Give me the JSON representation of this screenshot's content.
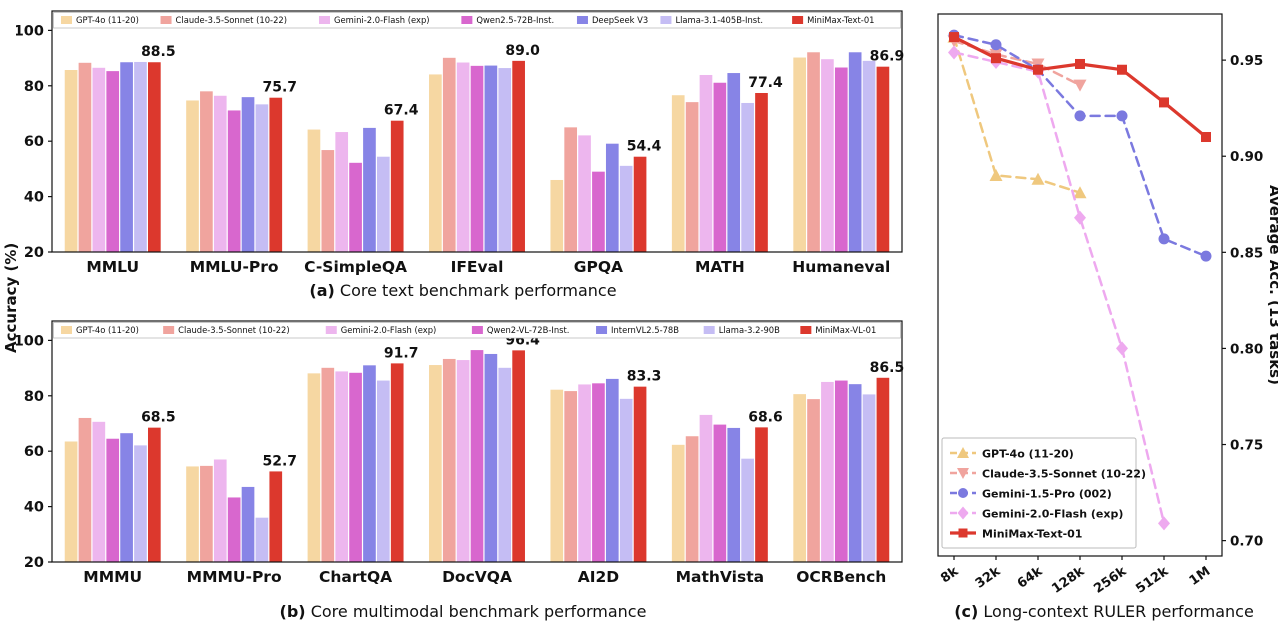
{
  "figure": {
    "caption_a_prefix": "(a)",
    "caption_a_text": "Core text benchmark performance",
    "caption_b_prefix": "(b)",
    "caption_b_text": "Core multimodal benchmark performance",
    "caption_c_prefix": "(c)",
    "caption_c_text": "Long-context RULER performance",
    "ylabel_left": "Accuracy (%)"
  },
  "chart_data": [
    {
      "id": "core-text-benchmarks",
      "type": "bar",
      "title": "(a) Core text benchmark performance",
      "ylabel": "Accuracy (%)",
      "ylim": [
        20,
        100
      ],
      "yticks": [
        20,
        40,
        60,
        80,
        100
      ],
      "grid": false,
      "legend_position": "top-inside-row",
      "categories": [
        "MMLU",
        "MMLU-Pro",
        "C-SimpleQA",
        "IFEval",
        "GPQA",
        "MATH",
        "Humaneval"
      ],
      "series": [
        {
          "name": "GPT-4o (11-20)",
          "color": "#F6D7A2",
          "values": [
            85.7,
            74.7,
            64.2,
            84.1,
            46.0,
            76.6,
            90.2
          ]
        },
        {
          "name": "Claude-3.5-Sonnet (10-22)",
          "color": "#F0A49E",
          "values": [
            88.3,
            78.0,
            56.8,
            90.1,
            65.0,
            74.1,
            92.1
          ]
        },
        {
          "name": "Gemini-2.0-Flash (exp)",
          "color": "#EDB6EE",
          "values": [
            86.5,
            76.4,
            63.3,
            88.4,
            62.1,
            83.9,
            89.6
          ]
        },
        {
          "name": "Qwen2.5-72B-Inst.",
          "color": "#D867CE",
          "values": [
            85.3,
            71.1,
            52.2,
            87.2,
            49.0,
            81.1,
            86.6
          ]
        },
        {
          "name": "DeepSeek V3",
          "color": "#8784E6",
          "values": [
            88.5,
            75.9,
            64.8,
            87.3,
            59.1,
            84.6,
            92.1
          ]
        },
        {
          "name": "Llama-3.1-405B-Inst.",
          "color": "#C5BDF4",
          "values": [
            88.6,
            73.3,
            54.4,
            86.4,
            51.1,
            73.8,
            89.0
          ]
        },
        {
          "name": "MiniMax-Text-01",
          "color": "#DC382D",
          "values": [
            88.5,
            75.7,
            67.4,
            89.0,
            54.4,
            77.4,
            86.9
          ]
        }
      ],
      "annotations": [
        "88.5",
        "75.7",
        "67.4",
        "89.0",
        "54.4",
        "77.4",
        "86.9"
      ]
    },
    {
      "id": "core-multimodal-benchmarks",
      "type": "bar",
      "title": "(b) Core multimodal benchmark performance",
      "ylabel": "Accuracy (%)",
      "ylim": [
        20,
        100
      ],
      "yticks": [
        20,
        40,
        60,
        80,
        100
      ],
      "grid": false,
      "legend_position": "top-inside-row",
      "categories": [
        "MMMU",
        "MMMU-Pro",
        "ChartQA",
        "DocVQA",
        "AI2D",
        "MathVista",
        "OCRBench"
      ],
      "series": [
        {
          "name": "GPT-4o (11-20)",
          "color": "#F6D7A2",
          "values": [
            63.5,
            54.5,
            88.1,
            91.1,
            82.2,
            62.3,
            80.6
          ]
        },
        {
          "name": "Claude-3.5-Sonnet (10-22)",
          "color": "#F0A49E",
          "values": [
            72.0,
            54.7,
            90.1,
            93.3,
            81.7,
            65.4,
            78.8
          ]
        },
        {
          "name": "Gemini-2.0-Flash (exp)",
          "color": "#EDB6EE",
          "values": [
            70.6,
            57.0,
            88.8,
            92.9,
            84.1,
            73.1,
            85.0
          ]
        },
        {
          "name": "Qwen2-VL-72B-Inst.",
          "color": "#D867CE",
          "values": [
            64.5,
            43.3,
            88.3,
            96.5,
            84.5,
            69.6,
            85.5
          ]
        },
        {
          "name": "InternVL2.5-78B",
          "color": "#8784E6",
          "values": [
            66.5,
            47.1,
            91.0,
            95.1,
            86.1,
            68.4,
            84.2
          ]
        },
        {
          "name": "Llama-3.2-90B",
          "color": "#C5BDF4",
          "values": [
            62.1,
            36.0,
            85.5,
            90.1,
            78.9,
            57.3,
            80.5
          ]
        },
        {
          "name": "MiniMax-VL-01",
          "color": "#DC382D",
          "values": [
            68.5,
            52.7,
            91.7,
            96.4,
            83.3,
            68.6,
            86.5
          ]
        }
      ],
      "annotations": [
        "68.5",
        "52.7",
        "91.7",
        "96.4",
        "83.3",
        "68.6",
        "86.5"
      ]
    },
    {
      "id": "long-context-ruler",
      "type": "line",
      "title": "(c) Long-context RULER performance",
      "ylabel_right": "Average Acc. (13 tasks)",
      "x_categories": [
        "8k",
        "32k",
        "64k",
        "128k",
        "256k",
        "512k",
        "1M"
      ],
      "ylim": [
        0.7,
        0.97
      ],
      "yticks": [
        0.7,
        0.75,
        0.8,
        0.85,
        0.9,
        0.95
      ],
      "grid": false,
      "legend_position": "lower-left-box",
      "series": [
        {
          "name": "GPT-4o (11-20)",
          "color": "#EFC87E",
          "marker": "triangle-up",
          "dash": true,
          "values": [
            0.962,
            0.89,
            0.888,
            0.881,
            null,
            null,
            null
          ]
        },
        {
          "name": "Claude-3.5-Sonnet (10-22)",
          "color": "#F0A49E",
          "marker": "triangle-down",
          "dash": true,
          "values": [
            0.96,
            0.953,
            0.948,
            0.937,
            null,
            null,
            null
          ]
        },
        {
          "name": "Gemini-1.5-Pro (002)",
          "color": "#7B79DF",
          "marker": "circle",
          "dash": true,
          "values": [
            0.963,
            0.958,
            0.945,
            0.921,
            0.921,
            0.857,
            0.848
          ]
        },
        {
          "name": "Gemini-2.0-Flash (exp)",
          "color": "#EEA9EF",
          "marker": "diamond",
          "dash": true,
          "values": [
            0.954,
            0.949,
            0.944,
            0.868,
            0.8,
            0.709,
            null
          ]
        },
        {
          "name": "MiniMax-Text-01",
          "color": "#DC382D",
          "marker": "square",
          "dash": false,
          "values": [
            0.962,
            0.951,
            0.945,
            0.948,
            0.945,
            0.928,
            0.91
          ]
        }
      ]
    }
  ]
}
